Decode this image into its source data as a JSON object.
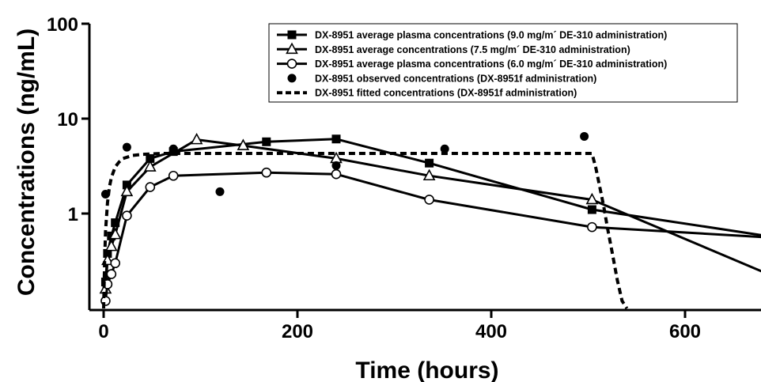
{
  "chart_data": {
    "type": "line",
    "xlabel": "Time (hours)",
    "ylabel": "Concentrations (ng/mL)",
    "xlim": [
      -15,
      670
    ],
    "ylim": [
      0.1,
      100
    ],
    "y_scale": "log",
    "x_ticks": [
      0,
      200,
      400,
      600
    ],
    "x_tick_labels": [
      "0",
      "200",
      "400",
      "600"
    ],
    "y_ticks": [
      1,
      10,
      100
    ],
    "y_tick_labels": [
      "1",
      "10",
      "100"
    ],
    "grid": false,
    "legend_position": "top-right",
    "series": [
      {
        "name": "DX-8951 average plasma concentrations (9.0 mg/m´ DE-310 administration)",
        "marker": "square-filled",
        "line": "solid",
        "x": [
          2,
          4,
          8,
          12,
          24,
          48,
          72,
          168,
          240,
          336,
          504,
          700
        ],
        "y": [
          0.19,
          0.38,
          0.58,
          0.8,
          2.0,
          3.8,
          4.5,
          5.7,
          6.1,
          3.4,
          1.1,
          0.55
        ]
      },
      {
        "name": "DX-8951 average concentrations (7.5 mg/m´ DE-310 administration)",
        "marker": "triangle-open",
        "line": "solid",
        "x": [
          2,
          4,
          8,
          12,
          24,
          48,
          96,
          144,
          240,
          336,
          504,
          700
        ],
        "y": [
          0.16,
          0.32,
          0.45,
          0.6,
          1.7,
          3.1,
          6.0,
          5.2,
          3.8,
          2.5,
          1.4,
          0.2
        ]
      },
      {
        "name": "DX-8951 average plasma concentrations (6.0 mg/m´ DE-310 administration)",
        "marker": "circle-open",
        "line": "solid",
        "x": [
          2,
          4,
          8,
          12,
          24,
          48,
          72,
          168,
          240,
          336,
          504,
          700
        ],
        "y": [
          0.12,
          0.18,
          0.23,
          0.3,
          0.95,
          1.9,
          2.5,
          2.7,
          2.6,
          1.4,
          0.72,
          0.55
        ]
      },
      {
        "name": "DX-8951 observed concentrations (DX-8951f administration)",
        "marker": "circle-filled",
        "line": "none",
        "x": [
          2,
          24,
          72,
          120,
          240,
          352,
          496
        ],
        "y": [
          1.6,
          5.0,
          4.8,
          1.7,
          3.2,
          4.8,
          6.5
        ]
      },
      {
        "name": "DX-8951 fitted concentrations (DX-8951f administration)",
        "marker": "none",
        "line": "dashed",
        "x": [
          0,
          1,
          2,
          4,
          6,
          8,
          12,
          16,
          20,
          30,
          40,
          60,
          100,
          200,
          300,
          400,
          500,
          504,
          508,
          512,
          516,
          520,
          525,
          530,
          535,
          540
        ],
        "y": [
          0.1,
          0.3,
          0.65,
          1.3,
          1.9,
          2.4,
          3.1,
          3.5,
          3.8,
          4.1,
          4.2,
          4.3,
          4.3,
          4.3,
          4.3,
          4.3,
          4.3,
          4.3,
          3.0,
          1.9,
          1.2,
          0.7,
          0.38,
          0.2,
          0.12,
          0.1
        ]
      }
    ]
  }
}
